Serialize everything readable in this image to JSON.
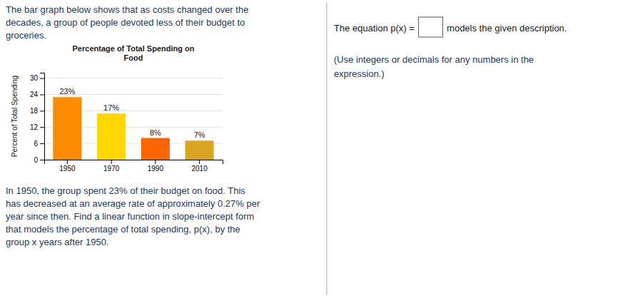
{
  "chart_data": {
    "type": "bar",
    "title": "Percentage of Total Spending on\nFood",
    "ylabel": "Percent of Total Spending",
    "categories": [
      "1950",
      "1970",
      "1990",
      "2010"
    ],
    "values": [
      23,
      17,
      8,
      7
    ],
    "value_labels": [
      "23%",
      "17%",
      "8%",
      "7%"
    ],
    "data_labels": true,
    "colors": [
      "#FF8C00",
      "#FFD700",
      "#FF6600",
      "#DAA520"
    ],
    "ylim": [
      0,
      32
    ],
    "yticks": [
      0,
      6,
      12,
      18,
      24,
      30
    ],
    "grid": true,
    "annotations": [
      "The bar graph below shows that as costs changed over the\ndecades, a group of people devoted less of their budget to\ngroceries.",
      "In 1950, the group spent 23% of their budget on food. This\nhas decreased at an average rate of approximately 0.27% per\nyear since then. Find a linear function in slope-intercept form\nthat models the percentage of total spending, p(x), by the\ngroup x years after 1950.",
      "The equation p(x) = ",
      " models the given description.",
      "(Use integers or decimals for any numbers in the",
      "expression.)"
    ]
  }
}
